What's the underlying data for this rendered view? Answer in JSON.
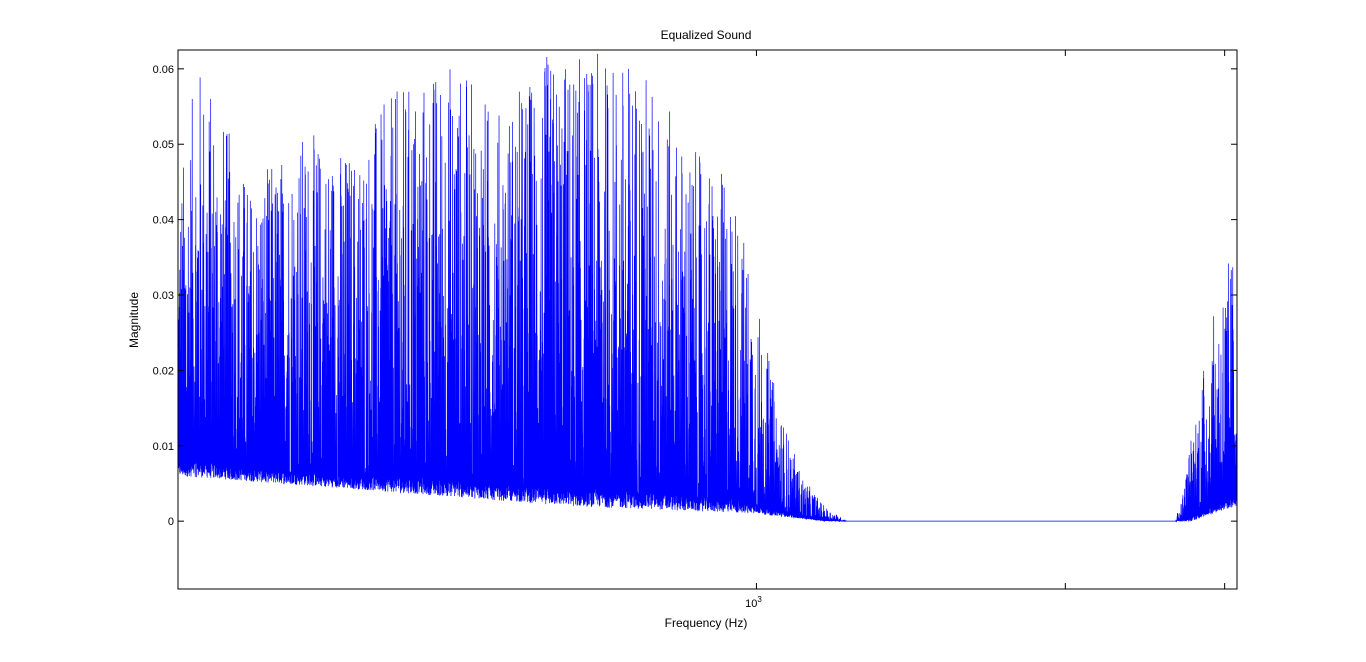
{
  "chart_data": {
    "type": "line",
    "title": "Equalized Sound",
    "xlabel": "Frequency (Hz)",
    "ylabel": "Magnitude",
    "x_scale": "log",
    "xlim": [
      881,
      1111
    ],
    "ylim": [
      -0.009,
      0.0625
    ],
    "x_ticks": [
      {
        "value": 1000,
        "base": "10",
        "exponent": "3"
      },
      {
        "value": 1070
      },
      {
        "value": 1108
      }
    ],
    "y_ticks": [
      {
        "value": 0,
        "label": "0"
      },
      {
        "value": 0.01,
        "label": "0.01"
      },
      {
        "value": 0.02,
        "label": "0.02"
      },
      {
        "value": 0.03,
        "label": "0.03"
      },
      {
        "value": 0.04,
        "label": "0.04"
      },
      {
        "value": 0.05,
        "label": "0.05"
      },
      {
        "value": 0.06,
        "label": "0.06"
      }
    ],
    "grid": false,
    "series": [
      {
        "color": "#0000ff",
        "envelope": [
          {
            "x": 881,
            "y": 0.044
          },
          {
            "x": 885,
            "y": 0.062
          },
          {
            "x": 895,
            "y": 0.045
          },
          {
            "x": 905,
            "y": 0.052
          },
          {
            "x": 915,
            "y": 0.05
          },
          {
            "x": 925,
            "y": 0.058
          },
          {
            "x": 935,
            "y": 0.062
          },
          {
            "x": 945,
            "y": 0.055
          },
          {
            "x": 955,
            "y": 0.062
          },
          {
            "x": 965,
            "y": 0.062
          },
          {
            "x": 975,
            "y": 0.062
          },
          {
            "x": 985,
            "y": 0.05
          },
          {
            "x": 995,
            "y": 0.045
          },
          {
            "x": 1000,
            "y": 0.03
          },
          {
            "x": 1005,
            "y": 0.015
          },
          {
            "x": 1010,
            "y": 0.006
          },
          {
            "x": 1015,
            "y": 0.002
          },
          {
            "x": 1020,
            "y": 0.0
          },
          {
            "x": 1096,
            "y": 0.0
          },
          {
            "x": 1098,
            "y": 0.004
          },
          {
            "x": 1100,
            "y": 0.012
          },
          {
            "x": 1102,
            "y": 0.018
          },
          {
            "x": 1104,
            "y": 0.024
          },
          {
            "x": 1106,
            "y": 0.029
          },
          {
            "x": 1108,
            "y": 0.034
          },
          {
            "x": 1111,
            "y": 0.037
          }
        ],
        "floor": [
          {
            "x": 881,
            "y": 0.006
          },
          {
            "x": 960,
            "y": 0.002
          },
          {
            "x": 1000,
            "y": 0.001
          },
          {
            "x": 1015,
            "y": 0.0
          },
          {
            "x": 1100,
            "y": 0.0
          },
          {
            "x": 1105,
            "y": 0.001
          },
          {
            "x": 1111,
            "y": 0.002
          }
        ]
      }
    ]
  }
}
